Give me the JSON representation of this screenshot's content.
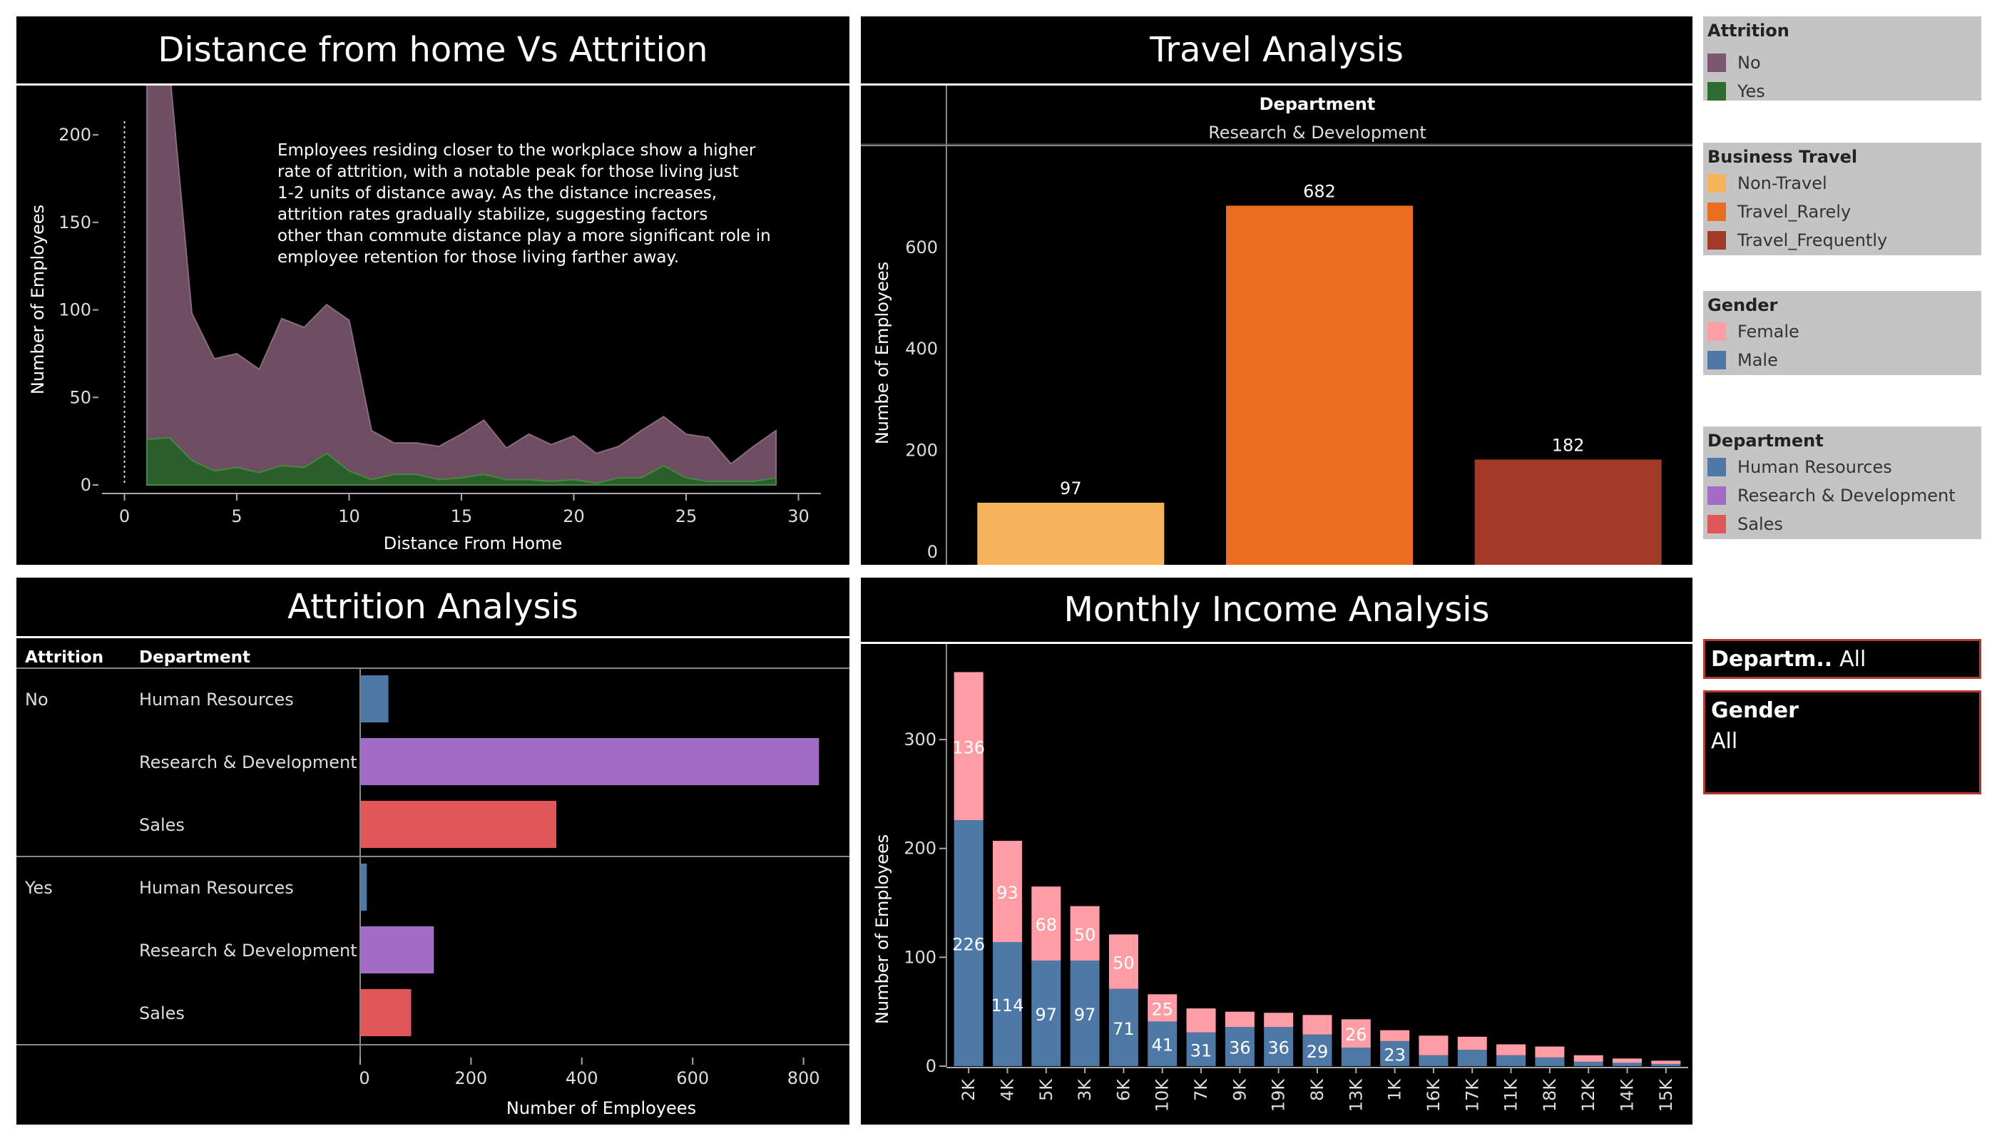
{
  "titles": {
    "distance": "Distance from home Vs Attrition",
    "travel": "Travel Analysis",
    "attrition": "Attrition Analysis",
    "income": "Monthly Income Analysis"
  },
  "legends": {
    "attrition": {
      "title": "Attrition",
      "items": [
        {
          "label": "No",
          "color": "#7d566f"
        },
        {
          "label": "Yes",
          "color": "#2e6b2e"
        }
      ]
    },
    "travel": {
      "title": "Business Travel",
      "items": [
        {
          "label": "Non-Travel",
          "color": "#f5b45a"
        },
        {
          "label": "Travel_Rarely",
          "color": "#ea6d20"
        },
        {
          "label": "Travel_Frequently",
          "color": "#a33a28"
        }
      ]
    },
    "gender": {
      "title": "Gender",
      "items": [
        {
          "label": "Female",
          "color": "#ff9da7"
        },
        {
          "label": "Male",
          "color": "#4e79a7"
        }
      ]
    },
    "department": {
      "title": "Department",
      "items": [
        {
          "label": "Human Resources",
          "color": "#4e79a7"
        },
        {
          "label": "Research & Development",
          "color": "#a06cc6"
        },
        {
          "label": "Sales",
          "color": "#e15759"
        }
      ]
    }
  },
  "filters": {
    "department": {
      "label": "Departm..",
      "value": "All"
    },
    "gender": {
      "label": "Gender",
      "value": "All"
    }
  },
  "chart_data": [
    {
      "type": "area",
      "title": "Distance from home Vs Attrition",
      "xlabel": "Distance From Home",
      "ylabel": "Number of Employees",
      "xlim": [
        -1,
        31
      ],
      "ylim": [
        0,
        220
      ],
      "xticks": [
        0,
        5,
        10,
        15,
        20,
        25,
        30
      ],
      "yticks": [
        0,
        50,
        100,
        150,
        200
      ],
      "annotation": "Employees residing closer to the workplace show a higher rate of attrition, with a notable peak for those living just 1-2 units of distance away. As the distance increases, attrition rates gradually stabilize, suggesting factors other than commute distance play a more significant role in employee retention for those living farther away.",
      "x": [
        1,
        2,
        3,
        4,
        5,
        6,
        7,
        8,
        9,
        10,
        11,
        12,
        13,
        14,
        15,
        16,
        17,
        18,
        19,
        20,
        21,
        22,
        23,
        24,
        25,
        26,
        27,
        28,
        29
      ],
      "series": [
        {
          "name": "No",
          "values": [
            208,
            211,
            84,
            64,
            65,
            59,
            84,
            80,
            85,
            86,
            28,
            18,
            18,
            19,
            25,
            31,
            18,
            26,
            21,
            25,
            17,
            18,
            27,
            28,
            25,
            25,
            10,
            20,
            27
          ]
        },
        {
          "name": "Yes",
          "values": [
            26,
            27,
            14,
            8,
            10,
            7,
            11,
            10,
            18,
            8,
            3,
            6,
            6,
            3,
            4,
            6,
            3,
            3,
            2,
            3,
            1,
            4,
            4,
            11,
            4,
            2,
            2,
            2,
            4
          ]
        }
      ]
    },
    {
      "type": "bar",
      "title": "Travel Analysis",
      "header_title": "Department",
      "header_value": "Research & Development",
      "ylabel": "Numbe of Employees",
      "ylim": [
        0,
        750
      ],
      "yticks": [
        0,
        200,
        400,
        600
      ],
      "categories": [
        "Non-Travel",
        "Travel_Rarely",
        "Travel_Frequently"
      ],
      "values": [
        97,
        682,
        182
      ],
      "labels": [
        "97",
        "682",
        "182"
      ],
      "colors": [
        "#f5b45a",
        "#ea6d20",
        "#a33a28"
      ]
    },
    {
      "type": "bar",
      "title": "Attrition Analysis",
      "col_headers": [
        "Attrition",
        "Department"
      ],
      "xlabel": "Number of Employees",
      "xlim": [
        0,
        870
      ],
      "xticks": [
        0,
        200,
        400,
        600,
        800
      ],
      "groups": [
        {
          "name": "No",
          "rows": [
            {
              "label": "Human Resources",
              "value": 51,
              "color": "#4e79a7"
            },
            {
              "label": "Research & Development",
              "value": 828,
              "color": "#a06cc6"
            },
            {
              "label": "Sales",
              "value": 354,
              "color": "#e15759"
            }
          ]
        },
        {
          "name": "Yes",
          "rows": [
            {
              "label": "Human Resources",
              "value": 12,
              "color": "#4e79a7"
            },
            {
              "label": "Research & Development",
              "value": 133,
              "color": "#a06cc6"
            },
            {
              "label": "Sales",
              "value": 92,
              "color": "#e15759"
            }
          ]
        }
      ]
    },
    {
      "type": "bar",
      "title": "Monthly Income Analysis",
      "ylabel": "Number of Employees",
      "ylim": [
        0,
        380
      ],
      "yticks": [
        0,
        100,
        200,
        300
      ],
      "categories": [
        "2K",
        "4K",
        "5K",
        "3K",
        "6K",
        "10K",
        "7K",
        "9K",
        "19K",
        "8K",
        "13K",
        "1K",
        "16K",
        "17K",
        "11K",
        "18K",
        "12K",
        "14K",
        "15K"
      ],
      "series": [
        {
          "name": "Male",
          "color": "#4e79a7",
          "values": [
            226,
            114,
            97,
            97,
            71,
            41,
            31,
            36,
            36,
            29,
            17,
            23,
            10,
            15,
            10,
            8,
            4,
            3,
            2
          ],
          "labels": [
            "226",
            "114",
            "97",
            "97",
            "71",
            "41",
            "31",
            "36",
            "36",
            "29",
            "",
            "23",
            "",
            "",
            "",
            "",
            "",
            "",
            ""
          ]
        },
        {
          "name": "Female",
          "color": "#ff9da7",
          "values": [
            136,
            93,
            68,
            50,
            50,
            25,
            22,
            14,
            13,
            18,
            26,
            10,
            18,
            12,
            10,
            10,
            6,
            4,
            3
          ],
          "labels": [
            "136",
            "93",
            "68",
            "50",
            "50",
            "25",
            "",
            "",
            "",
            "",
            "26",
            "",
            "",
            "",
            "",
            "",
            "",
            "",
            ""
          ]
        }
      ]
    }
  ]
}
